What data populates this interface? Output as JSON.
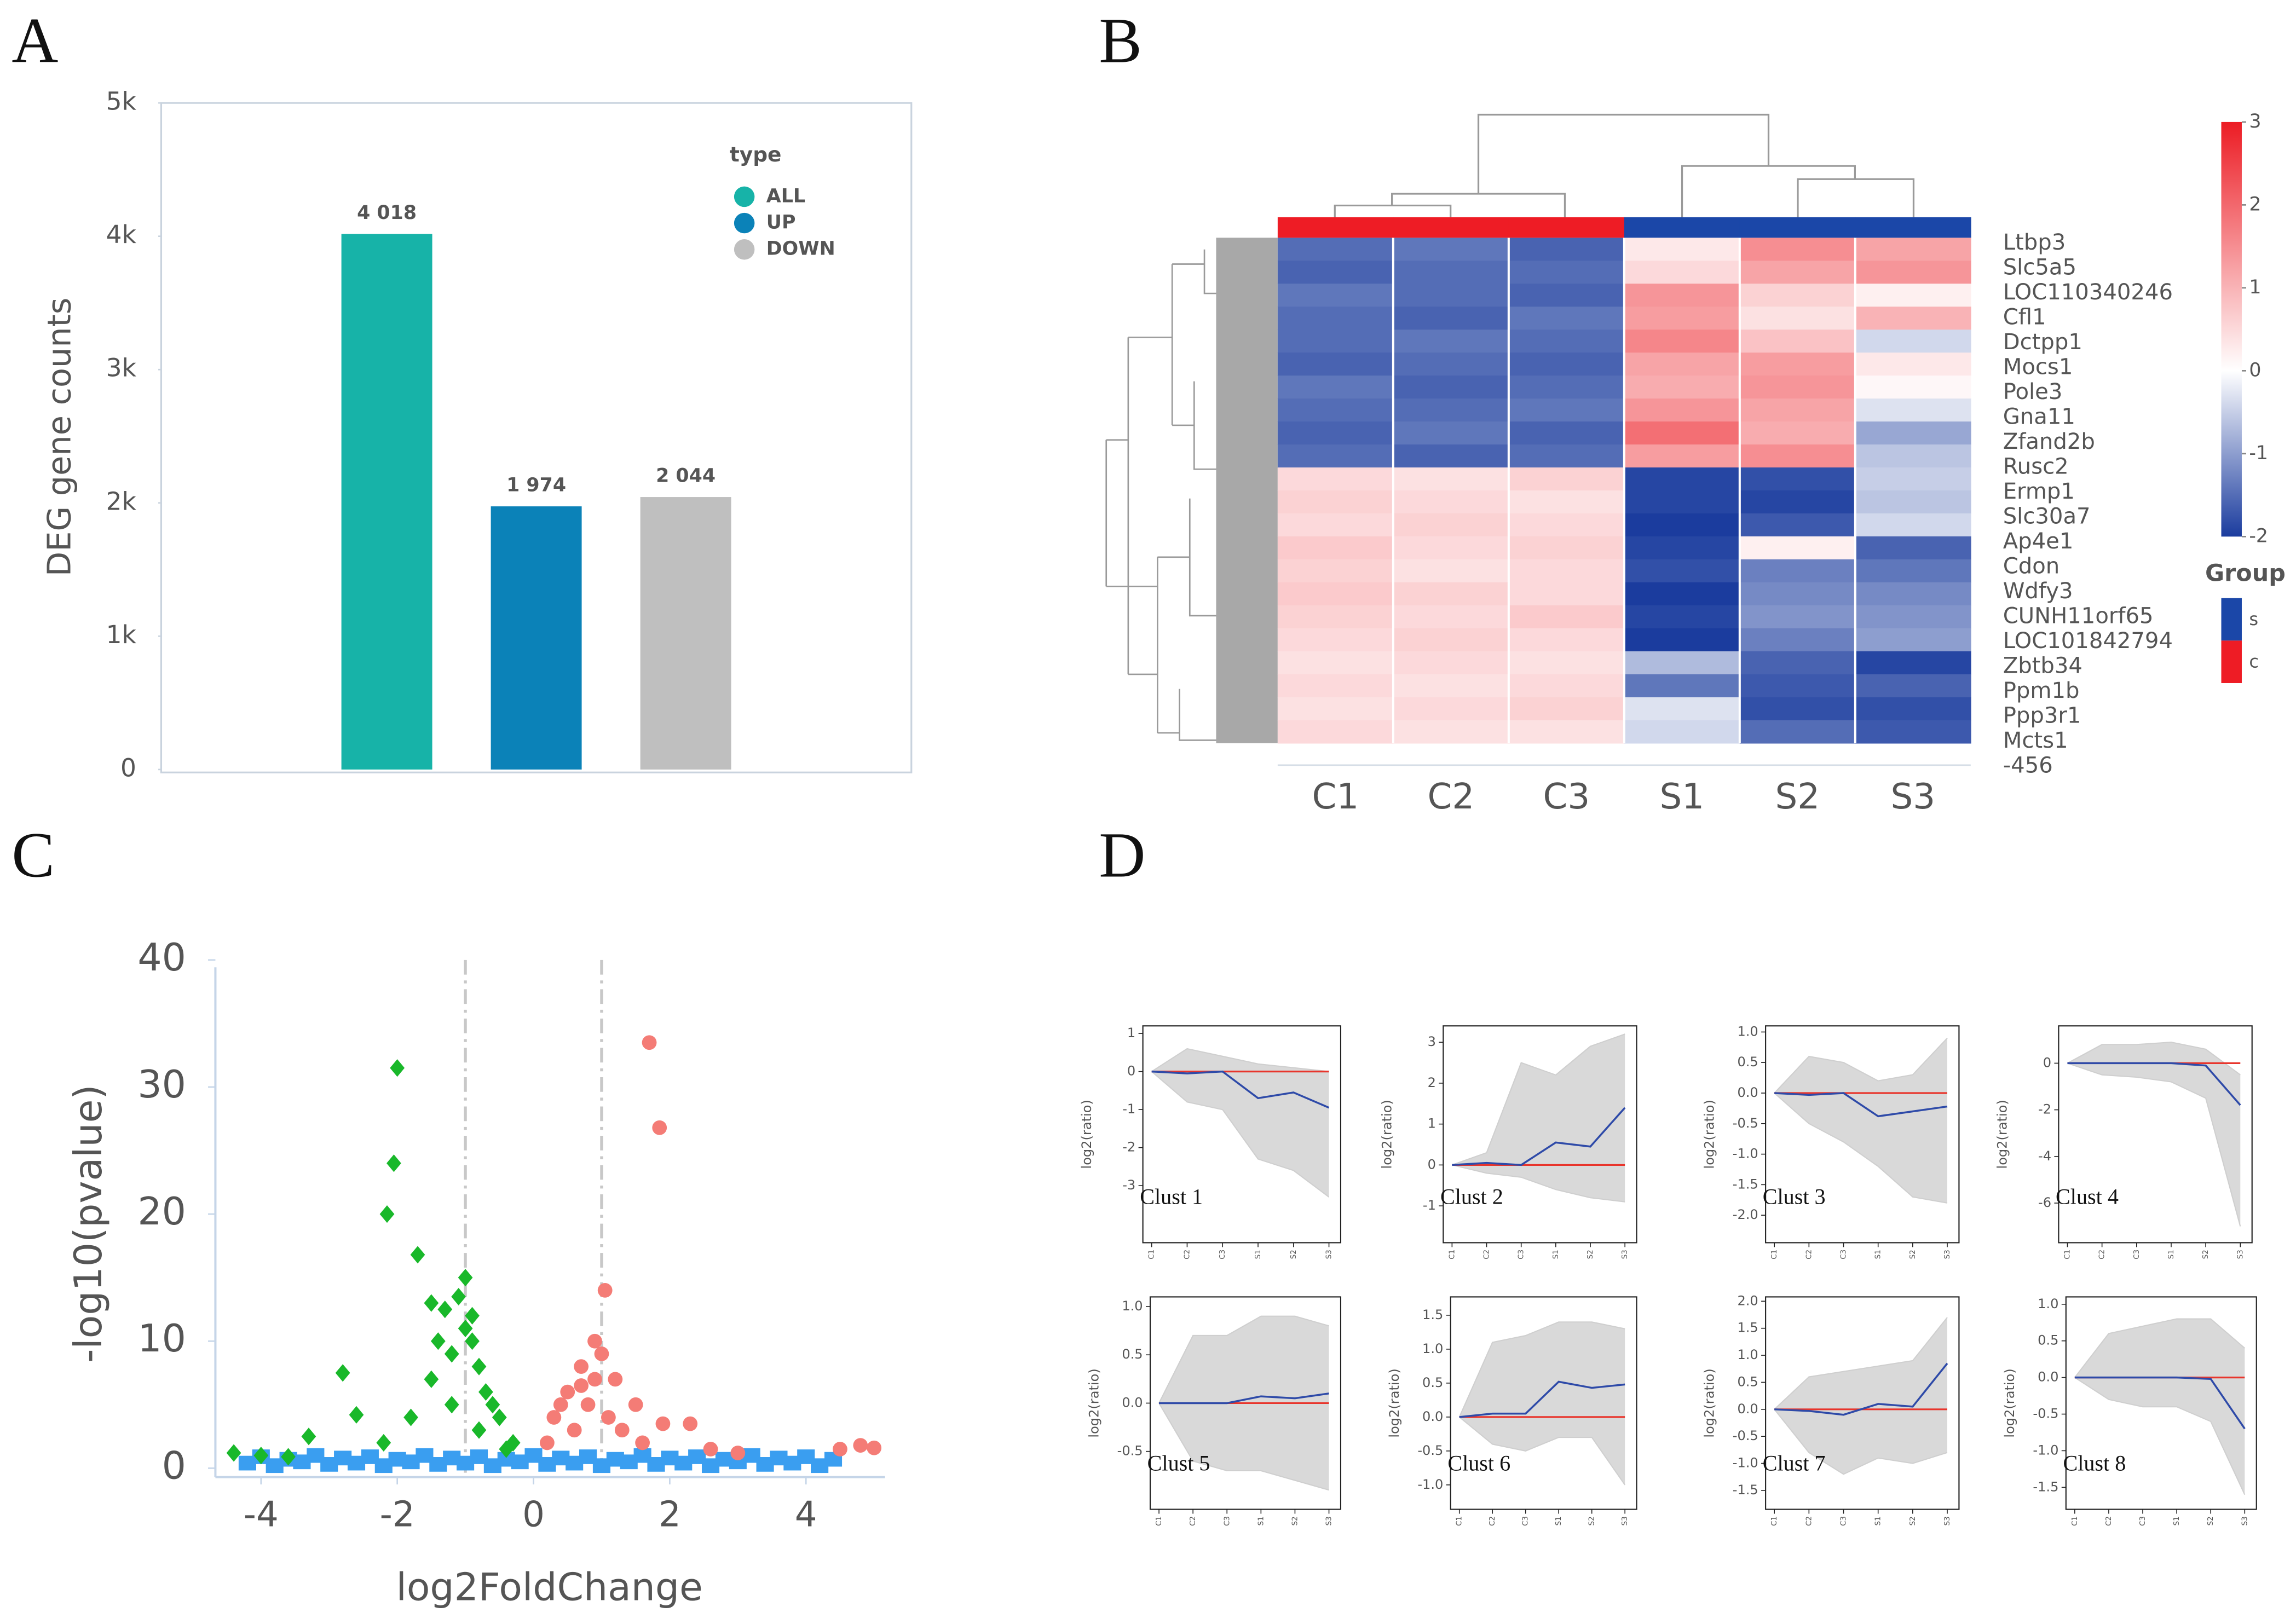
{
  "chart_data": [
    {
      "type": "bar",
      "panel": "A",
      "ylabel": "DEG gene counts",
      "legend_title": "type",
      "categories": [
        "ALL",
        "UP",
        "DOWN"
      ],
      "values": [
        4018,
        1974,
        2044
      ],
      "value_labels": [
        "4 018",
        "1 974",
        "2 044"
      ],
      "colors": [
        "#17b3a8",
        "#0b82b8",
        "#bfbfbf"
      ],
      "ylim": [
        0,
        5000
      ],
      "yticks": [
        0,
        {
          "value": 1000,
          "label": "1k"
        },
        {
          "value": 2000,
          "label": "2k"
        },
        {
          "value": 3000,
          "label": "3k"
        },
        {
          "value": 4000,
          "label": "4k"
        },
        {
          "value": 5000,
          "label": "5k"
        }
      ]
    },
    {
      "type": "heatmap",
      "panel": "B",
      "columns": [
        "C1",
        "C2",
        "C3",
        "S1",
        "S2",
        "S3"
      ],
      "groups": [
        "c",
        "c",
        "c",
        "s",
        "s",
        "s"
      ],
      "rows": [
        "Ltbp3",
        "Slc5a5",
        "LOC110340246",
        "Cfl1",
        "Dctpp1",
        "Mocs1",
        "Pole3",
        "Gna11",
        "Zfand2b",
        "Rusc2",
        "Ermp1",
        "Slc30a7",
        "Ap4e1",
        "Cdon",
        "Wdfy3",
        "CUNH11orf65",
        "LOC101842794",
        "Zbtb34",
        "Ppm1b",
        "Ppp3r1",
        "Mcts1",
        "-456"
      ],
      "values": [
        [
          -1.5,
          -1.4,
          -1.6,
          0.3,
          1.5,
          1.2
        ],
        [
          -1.6,
          -1.5,
          -1.5,
          0.5,
          1.2,
          1.4
        ],
        [
          -1.4,
          -1.5,
          -1.6,
          1.4,
          0.6,
          0.2
        ],
        [
          -1.5,
          -1.6,
          -1.4,
          1.3,
          0.4,
          1.0
        ],
        [
          -1.5,
          -1.4,
          -1.5,
          1.6,
          0.8,
          -0.4
        ],
        [
          -1.6,
          -1.5,
          -1.6,
          1.2,
          1.3,
          0.3
        ],
        [
          -1.4,
          -1.6,
          -1.5,
          1.1,
          1.4,
          0.1
        ],
        [
          -1.5,
          -1.5,
          -1.4,
          1.4,
          1.2,
          -0.3
        ],
        [
          -1.6,
          -1.4,
          -1.6,
          1.9,
          1.1,
          -0.9
        ],
        [
          -1.5,
          -1.6,
          -1.5,
          1.3,
          1.5,
          -0.6
        ],
        [
          0.5,
          0.4,
          0.6,
          -1.9,
          -1.8,
          -0.5
        ],
        [
          0.6,
          0.5,
          0.4,
          -1.9,
          -1.9,
          -0.6
        ],
        [
          0.5,
          0.6,
          0.5,
          -2,
          -1.7,
          -0.4
        ],
        [
          0.7,
          0.5,
          0.6,
          -1.9,
          0.2,
          -1.6
        ],
        [
          0.6,
          0.4,
          0.5,
          -1.8,
          -1.3,
          -1.4
        ],
        [
          0.7,
          0.6,
          0.5,
          -2,
          -1.2,
          -1.2
        ],
        [
          0.6,
          0.5,
          0.7,
          -1.9,
          -1.1,
          -1.1
        ],
        [
          0.5,
          0.6,
          0.5,
          -2,
          -1.3,
          -1.0
        ],
        [
          0.4,
          0.5,
          0.4,
          -0.7,
          -1.6,
          -1.9
        ],
        [
          0.5,
          0.4,
          0.5,
          -1.4,
          -1.7,
          -1.6
        ],
        [
          0.4,
          0.5,
          0.6,
          -0.3,
          -1.8,
          -1.8
        ],
        [
          0.5,
          0.4,
          0.4,
          -0.4,
          -1.5,
          -1.7
        ]
      ],
      "colors": [
        "#1b3c9e",
        "#ffffff",
        "#ec1c24"
      ],
      "clim": [
        -2,
        3
      ],
      "cticks": [
        3,
        2,
        1,
        0,
        -1,
        -2
      ],
      "legend_title": "Group",
      "legend": [
        {
          "label": "s",
          "color": "#1b47a8"
        },
        {
          "label": "c",
          "color": "#ee1c25"
        }
      ]
    },
    {
      "type": "scatter",
      "panel": "C",
      "xlabel": "log2FoldChange",
      "ylabel": "-log10(pvalue)",
      "xlim": [
        -4.67,
        5.16
      ],
      "ylim": [
        -0.7,
        40
      ],
      "xticks": [
        -4,
        -2,
        0,
        2,
        4
      ],
      "yticks": [
        0,
        10,
        20,
        30,
        40
      ],
      "vlines": [
        -1,
        1
      ],
      "series": [
        {
          "color": "#3a9ef0",
          "marker": "square",
          "x": [
            -4.2,
            -4,
            -3.8,
            -3.6,
            -3.4,
            -3.2,
            -3,
            -2.8,
            -2.6,
            -2.4,
            -2.2,
            -2,
            -1.8,
            -1.6,
            -1.4,
            -1.2,
            -1,
            -0.8,
            -0.6,
            -0.4,
            -0.2,
            0,
            0.2,
            0.4,
            0.6,
            0.8,
            1,
            1.2,
            1.4,
            1.6,
            1.8,
            2,
            2.2,
            2.4,
            2.6,
            2.8,
            3,
            3.2,
            3.4,
            3.6,
            3.8,
            4,
            4.2,
            4.4
          ],
          "y": [
            0.4,
            0.9,
            0.2,
            0.7,
            0.5,
            1,
            0.3,
            0.8,
            0.4,
            0.9,
            0.2,
            0.7,
            0.5,
            1,
            0.3,
            0.8,
            0.4,
            0.9,
            0.2,
            0.7,
            0.5,
            1,
            0.3,
            0.8,
            0.4,
            0.9,
            0.2,
            0.7,
            0.5,
            1,
            0.3,
            0.8,
            0.4,
            0.9,
            0.2,
            0.7,
            0.5,
            1,
            0.3,
            0.8,
            0.4,
            0.9,
            0.2,
            0.7
          ]
        },
        {
          "color": "#19b82a",
          "marker": "diamond",
          "x": [
            -2,
            -2.05,
            -2.15,
            -1.7,
            -2.8,
            -2.6,
            -3.3,
            -1.5,
            -1.3,
            -1.0,
            -1.1,
            -0.9,
            -0.8,
            -0.7,
            -0.5,
            -0.3,
            -1.2,
            -1.5,
            -1.8,
            -2.2,
            -4.4,
            -4.0,
            -3.6,
            -0.9,
            -1.0,
            -0.6,
            -1.4,
            -0.8,
            -1.2,
            -0.4
          ],
          "y": [
            31.5,
            24,
            20,
            16.8,
            7.5,
            4.2,
            2.5,
            13,
            12.5,
            15,
            13.5,
            10,
            8,
            6,
            4,
            2,
            9,
            7,
            4,
            2,
            1.2,
            1,
            0.9,
            12,
            11,
            5,
            10,
            3,
            5,
            1.5
          ]
        },
        {
          "color": "#f47c76",
          "marker": "circle",
          "x": [
            1.7,
            1.85,
            1.05,
            0.9,
            1.0,
            0.7,
            0.5,
            0.3,
            0.2,
            0.8,
            1.2,
            1.5,
            1.9,
            2.3,
            2.6,
            3.0,
            4.5,
            4.8,
            5.0,
            1.1,
            0.6,
            0.9,
            1.3,
            1.6,
            0.4,
            0.7
          ],
          "y": [
            33.5,
            26.8,
            14,
            10,
            9,
            8,
            6,
            4,
            2,
            5,
            7,
            5,
            3.5,
            3.5,
            1.5,
            1.2,
            1.5,
            1.8,
            1.6,
            4,
            3,
            7,
            3,
            2,
            5,
            6.5
          ]
        }
      ]
    },
    {
      "type": "line",
      "panel": "D",
      "ylabel": "log2(ratio)",
      "categories": [
        "C1",
        "C2",
        "C3",
        "S1",
        "S2",
        "S3"
      ],
      "refline": 0,
      "refcolor": "#e8352c",
      "clusters": [
        {
          "title": "Clust 1",
          "ylim": [
            -4.5,
            1.2
          ],
          "yticks": [
            1,
            0,
            -1,
            -2,
            -3
          ],
          "series": [
            {
              "color": "#cfcfcf",
              "values": [
                0,
                0.6,
                0.4,
                0.2,
                0.1,
                0
              ]
            },
            {
              "color": "#cfcfcf",
              "values": [
                0,
                -0.8,
                -1,
                -2.3,
                -2.6,
                -3.3
              ]
            },
            {
              "color": "#2e4aa8",
              "values": [
                0,
                -0.05,
                0,
                -0.7,
                -0.55,
                -0.95
              ]
            }
          ]
        },
        {
          "title": "Clust 2",
          "ylim": [
            -1.9,
            3.4
          ],
          "yticks": [
            3,
            2,
            1,
            0,
            -1
          ],
          "series": [
            {
              "color": "#cfcfcf",
              "values": [
                0,
                0.3,
                2.5,
                2.2,
                2.9,
                3.2
              ]
            },
            {
              "color": "#cfcfcf",
              "values": [
                0,
                -0.2,
                -0.3,
                -0.6,
                -0.8,
                -0.9
              ]
            },
            {
              "color": "#2e4aa8",
              "values": [
                0,
                0.05,
                0,
                0.55,
                0.45,
                1.4
              ]
            }
          ]
        },
        {
          "title": "Clust 3",
          "ylim": [
            -2.45,
            1.1
          ],
          "yticks": [
            {
              "value": 1,
              "label": "1.0"
            },
            0.5,
            {
              "value": 0,
              "label": "0.0"
            },
            -0.5,
            {
              "value": -1,
              "label": "-1.0"
            },
            -1.5,
            {
              "value": -2,
              "label": "-2.0"
            }
          ],
          "series": [
            {
              "color": "#cfcfcf",
              "values": [
                0,
                0.6,
                0.5,
                0.2,
                0.3,
                0.9
              ]
            },
            {
              "color": "#cfcfcf",
              "values": [
                0,
                -0.5,
                -0.8,
                -1.2,
                -1.7,
                -1.8
              ]
            },
            {
              "color": "#2e4aa8",
              "values": [
                0,
                -0.03,
                0,
                -0.38,
                -0.3,
                -0.22
              ]
            }
          ]
        },
        {
          "title": "Clust 4",
          "ylim": [
            -7.7,
            1.6
          ],
          "yticks": [
            0,
            -2,
            -4,
            -6
          ],
          "series": [
            {
              "color": "#cfcfcf",
              "values": [
                0,
                0.8,
                0.8,
                0.9,
                0.6,
                -0.5
              ]
            },
            {
              "color": "#cfcfcf",
              "values": [
                0,
                -0.5,
                -0.6,
                -0.8,
                -1.5,
                -7
              ]
            },
            {
              "color": "#2e4aa8",
              "values": [
                0,
                0,
                0,
                0,
                -0.1,
                -1.8
              ]
            }
          ]
        },
        {
          "title": "Clust 5",
          "ylim": [
            -1.1,
            1.1
          ],
          "yticks": [
            {
              "value": 1,
              "label": "1.0"
            },
            0.5,
            {
              "value": 0,
              "label": "0.0"
            },
            -0.5
          ],
          "series": [
            {
              "color": "#cfcfcf",
              "values": [
                0,
                0.7,
                0.7,
                0.9,
                0.9,
                0.8
              ]
            },
            {
              "color": "#cfcfcf",
              "values": [
                0,
                -0.6,
                -0.7,
                -0.7,
                -0.8,
                -0.9
              ]
            },
            {
              "color": "#2e4aa8",
              "values": [
                0,
                0,
                0,
                0.07,
                0.05,
                0.1
              ]
            }
          ]
        },
        {
          "title": "Clust 6",
          "ylim": [
            -1.36,
            1.77
          ],
          "yticks": [
            1.5,
            {
              "value": 1,
              "label": "1.0"
            },
            0.5,
            {
              "value": 0,
              "label": "0.0"
            },
            -0.5,
            {
              "value": -1,
              "label": "-1.0"
            }
          ],
          "series": [
            {
              "color": "#cfcfcf",
              "values": [
                0,
                1.1,
                1.2,
                1.4,
                1.4,
                1.3
              ]
            },
            {
              "color": "#cfcfcf",
              "values": [
                0,
                -0.4,
                -0.5,
                -0.3,
                -0.3,
                -1.0
              ]
            },
            {
              "color": "#2e4aa8",
              "values": [
                0,
                0.05,
                0.05,
                0.52,
                0.43,
                0.48
              ]
            }
          ]
        },
        {
          "title": "Clust 7",
          "ylim": [
            -1.85,
            2.08
          ],
          "yticks": [
            {
              "value": 2,
              "label": "2.0"
            },
            1.5,
            {
              "value": 1,
              "label": "1.0"
            },
            0.5,
            {
              "value": 0,
              "label": "0.0"
            },
            -0.5,
            {
              "value": -1,
              "label": "-1.0"
            },
            -1.5
          ],
          "series": [
            {
              "color": "#cfcfcf",
              "values": [
                0,
                0.6,
                0.7,
                0.8,
                0.9,
                1.7
              ]
            },
            {
              "color": "#cfcfcf",
              "values": [
                0,
                -0.8,
                -1.2,
                -0.9,
                -1.0,
                -0.8
              ]
            },
            {
              "color": "#2e4aa8",
              "values": [
                0,
                -0.03,
                -0.1,
                0.1,
                0.05,
                0.85
              ]
            }
          ]
        },
        {
          "title": "Clust 8",
          "ylim": [
            -1.8,
            1.1
          ],
          "yticks": [
            {
              "value": 1,
              "label": "1.0"
            },
            0.5,
            {
              "value": 0,
              "label": "0.0"
            },
            -0.5,
            {
              "value": -1,
              "label": "-1.0"
            },
            -1.5
          ],
          "series": [
            {
              "color": "#cfcfcf",
              "values": [
                0,
                0.6,
                0.7,
                0.8,
                0.8,
                0.4
              ]
            },
            {
              "color": "#cfcfcf",
              "values": [
                0,
                -0.3,
                -0.4,
                -0.4,
                -0.6,
                -1.6
              ]
            },
            {
              "color": "#2e4aa8",
              "values": [
                0,
                0,
                0,
                0,
                -0.02,
                -0.7
              ]
            }
          ]
        }
      ]
    }
  ]
}
